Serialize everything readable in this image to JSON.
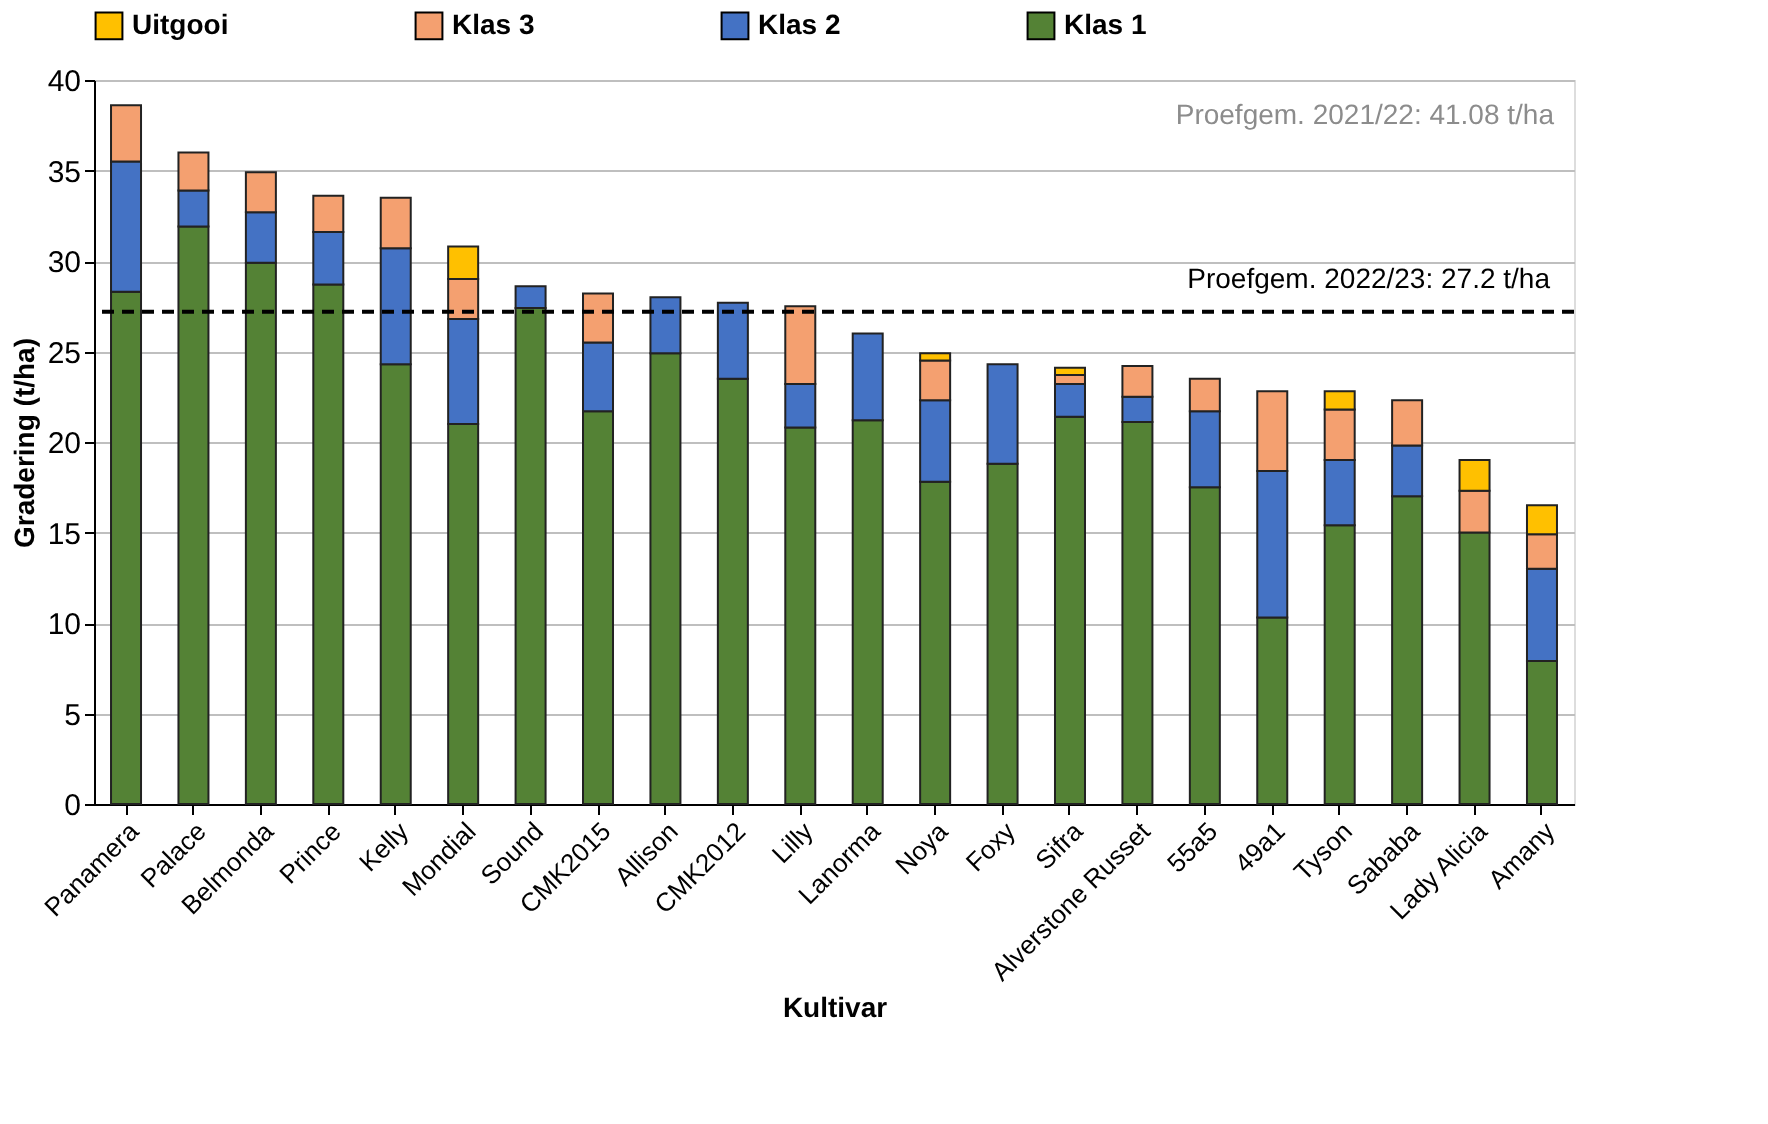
{
  "chart_data": {
    "type": "bar",
    "stacked": true,
    "xlabel": "Kultivar",
    "ylabel": "Gradering (t/ha)",
    "categories": [
      "Panamera",
      "Palace",
      "Belmonda",
      "Prince",
      "Kelly",
      "Mondial",
      "Sound",
      "CMK2015",
      "Allison",
      "CMK2012",
      "Lilly",
      "Lanorma",
      "Noya",
      "Foxy",
      "Sifra",
      "Alverstone Russet",
      "55a5",
      "49a1",
      "Tyson",
      "Sababa",
      "Lady Alicia",
      "Amany"
    ],
    "series": [
      {
        "name": "Klas 1",
        "color": "#548235",
        "values": [
          28.3,
          31.9,
          29.9,
          28.7,
          24.3,
          21.0,
          27.4,
          21.7,
          24.9,
          23.5,
          20.8,
          21.2,
          17.8,
          18.8,
          21.4,
          21.1,
          17.5,
          10.3,
          15.4,
          17.0,
          15.0,
          7.9
        ]
      },
      {
        "name": "Klas 2",
        "color": "#4472c4",
        "values": [
          7.2,
          2.0,
          2.8,
          2.9,
          6.4,
          5.8,
          1.2,
          3.8,
          3.1,
          4.2,
          2.4,
          4.8,
          4.5,
          5.5,
          1.8,
          1.4,
          4.2,
          8.1,
          3.6,
          2.8,
          null,
          5.1
        ]
      },
      {
        "name": "Klas 3",
        "color": "#f4a070",
        "values": [
          3.1,
          2.1,
          2.2,
          2.0,
          2.8,
          2.2,
          null,
          2.7,
          null,
          null,
          4.3,
          null,
          2.2,
          null,
          0.5,
          1.7,
          1.8,
          4.4,
          2.8,
          2.5,
          2.3,
          1.9
        ]
      },
      {
        "name": "Uitgooi",
        "color": "#ffc000",
        "values": [
          null,
          null,
          null,
          null,
          null,
          1.8,
          null,
          null,
          null,
          null,
          null,
          null,
          0.4,
          null,
          0.4,
          null,
          null,
          null,
          1.0,
          null,
          1.7,
          1.6
        ]
      }
    ],
    "ylim": [
      0,
      40
    ],
    "yticks": [
      0,
      5,
      10,
      15,
      20,
      25,
      30,
      35,
      40
    ],
    "grid": "y",
    "legend": "top",
    "ref_lines": [
      {
        "axis": "y",
        "value": 27.2,
        "label": "Proefgem. 2022/23: 27.2 t/ha",
        "color": "#000000",
        "line_style": "dashed"
      }
    ],
    "annotations": [
      "Proefgem. 2021/22: 41.08 t/ha"
    ]
  }
}
